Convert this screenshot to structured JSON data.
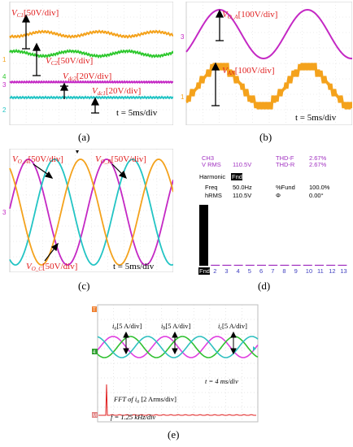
{
  "colors": {
    "orange": "#f4a21c",
    "green": "#2ec82e",
    "magenta": "#c428c4",
    "cyan": "#22c4c4",
    "red_label": "#e02020",
    "scope_bg": "#ffffff"
  },
  "panel_a": {
    "caption": "(a)",
    "labels": {
      "vc1": "V",
      "vc1_sub": "C1",
      "vc1_scale": "[50V/div]",
      "vc2": "V",
      "vc2_sub": "C2",
      "vc2_scale": "[50V/div]",
      "vdc2": "V",
      "vdc2_sub": "dc2",
      "vdc2_scale": "[20V/div]",
      "vdc1": "V",
      "vdc1_sub": "dc1",
      "vdc1_scale": "[20V/div]",
      "time": "t = 5ms/div"
    },
    "markers": [
      "1",
      "1",
      "4",
      "3",
      "2"
    ]
  },
  "panel_b": {
    "caption": "(b)",
    "labels": {
      "voa": "V",
      "voa_sub": "O_A",
      "voa_scale": "[100V/div]",
      "van": "V",
      "van_sub": "AN",
      "van_scale": "[100V/div]",
      "time": "t = 5ms/div"
    },
    "markers": [
      "3",
      "1"
    ]
  },
  "panel_c": {
    "caption": "(c)",
    "labels": {
      "voa": "V",
      "voa_sub": "O_A",
      "voa_scale": "[50V/div]",
      "vob": "V",
      "vob_sub": "O_B",
      "vob_scale": "[50V/div]",
      "voc": "V",
      "voc_sub": "O_C",
      "voc_scale": "[50V/div]",
      "time": "t = 5ms/div"
    },
    "markers": [
      "3"
    ]
  },
  "panel_d": {
    "caption": "(d)",
    "ch": "CH3",
    "vrms_label": "V RMS",
    "vrms_value": "110.5V",
    "thdf_label": "THD-F",
    "thdf_value": "2.67%",
    "thdr_label": "THD-R",
    "thdr_value": "2.67%",
    "harmonic_label": "Harmonic",
    "harmonic_sel": "Fnd",
    "freq_label": "Freq",
    "freq_value": "50.0Hz",
    "fund_label": "%Fund",
    "fund_value": "100.0%",
    "hrms_label": "hRMS",
    "hrms_value": "110.5V",
    "phi_label": "Φ",
    "phi_value": "0.00°",
    "axis_labels": [
      "Fnd",
      "2",
      "3",
      "4",
      "5",
      "6",
      "7",
      "8",
      "9",
      "10",
      "11",
      "12",
      "13"
    ]
  },
  "chart_data": {
    "type": "bar",
    "categories": [
      "Fnd",
      "2",
      "3",
      "4",
      "5",
      "6",
      "7",
      "8",
      "9",
      "10",
      "11",
      "12",
      "13"
    ],
    "values": [
      100.0,
      0.3,
      0.4,
      0.3,
      0.5,
      0.4,
      0.4,
      0.3,
      0.4,
      0.3,
      0.3,
      0.3,
      0.3
    ],
    "ylim": [
      0,
      100
    ]
  },
  "panel_e": {
    "caption": "(e)",
    "labels": {
      "ia": "i",
      "ia_sub": "a",
      "ia_scale": "[5 A/div]",
      "ib": "i",
      "ib_sub": "b",
      "ib_scale": "[5 A/div]",
      "ic": "i",
      "ic_sub": "c",
      "ic_scale": "[5 A/div]",
      "time": "t =  4 ms/div",
      "fft": "FFT of i",
      "fft_sub": "a",
      "fft_scale": " [2 Arms/div]",
      "freq": "f =  1.25 kHz/div"
    },
    "markers": [
      "T",
      "4",
      "M"
    ]
  }
}
